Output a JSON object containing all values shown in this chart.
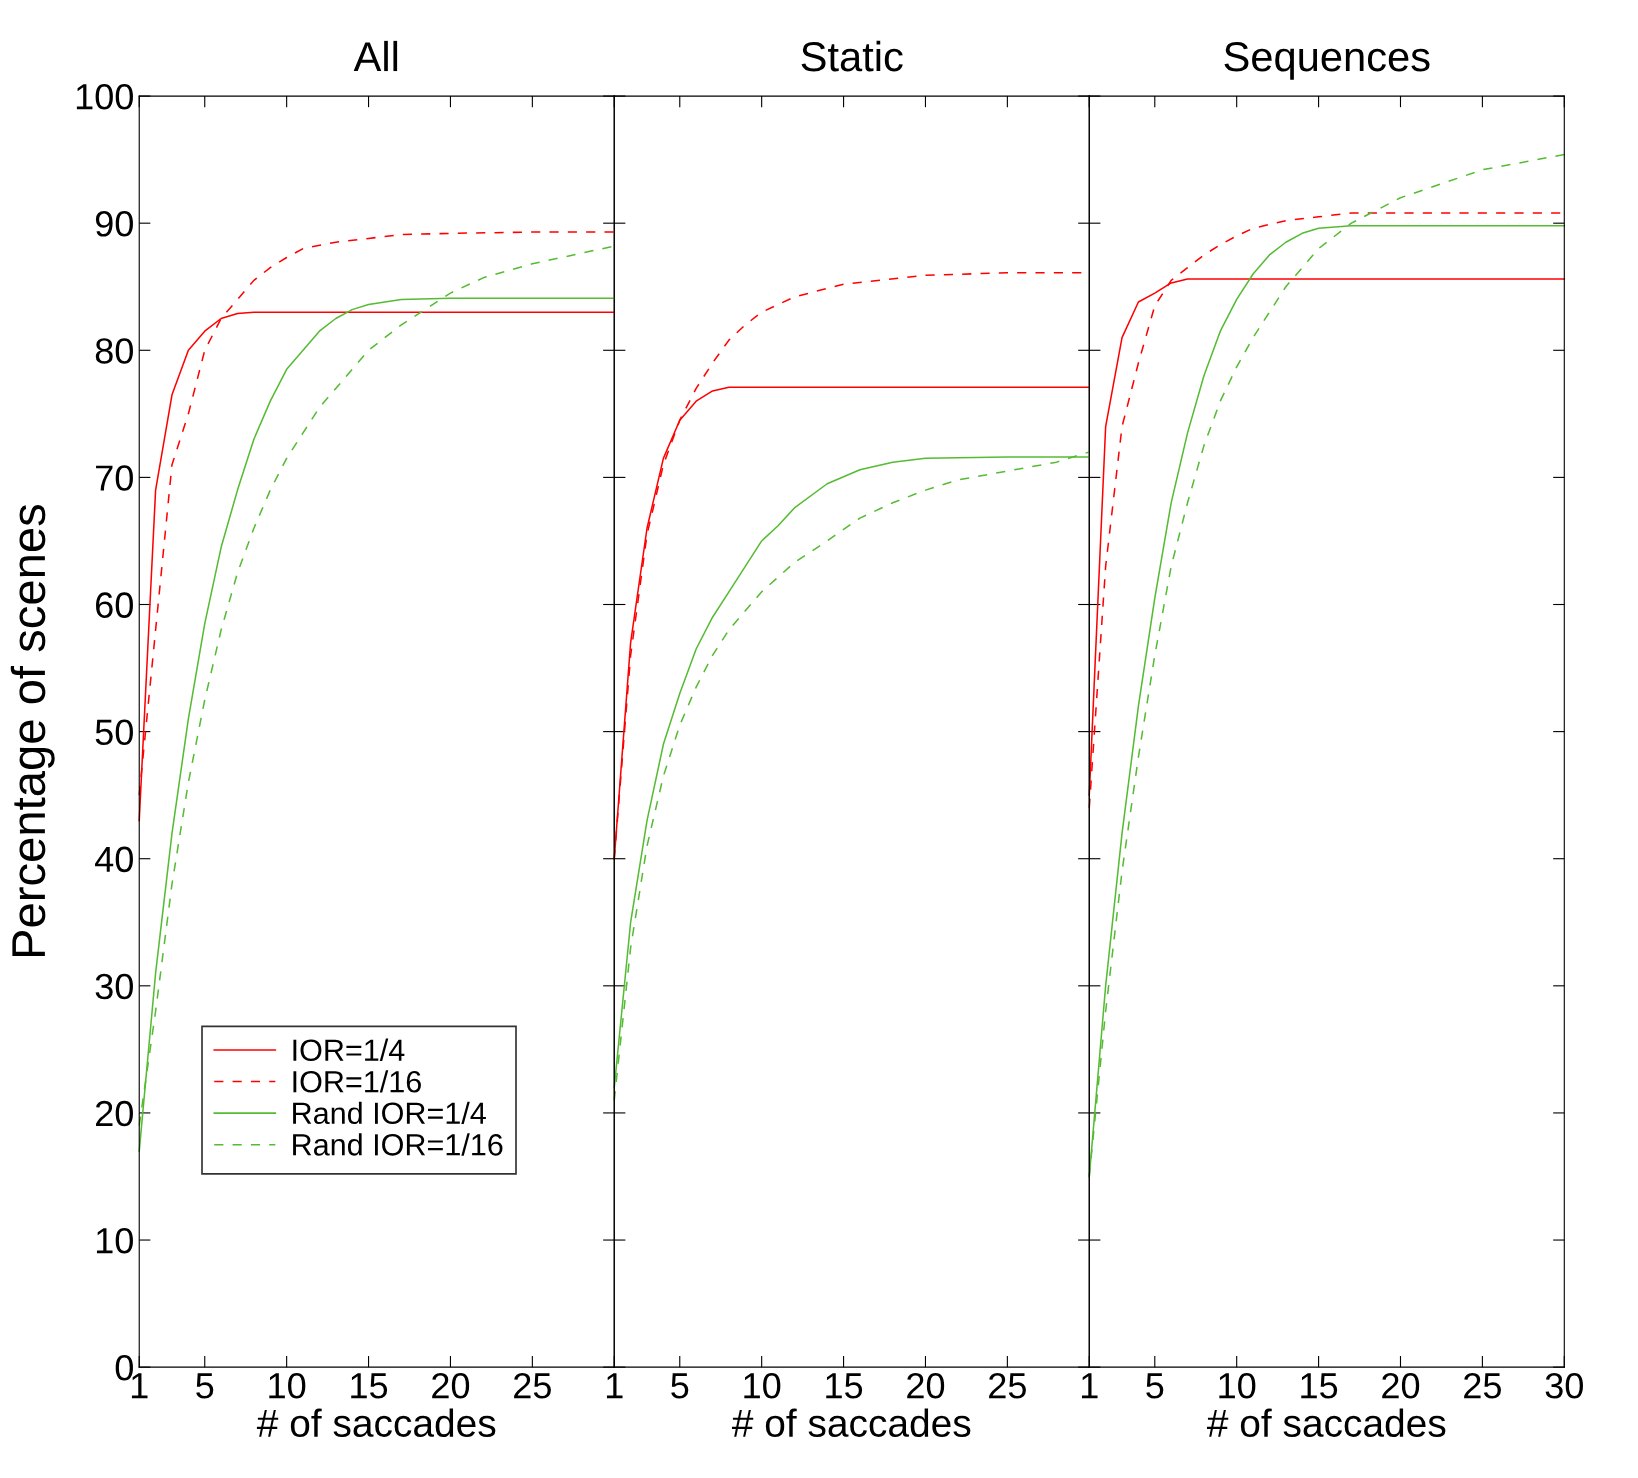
{
  "chart_data": [
    {
      "type": "line",
      "title": "All",
      "xlabel": "# of saccades",
      "ylabel": "Percentage of scenes",
      "xlim": [
        1,
        30
      ],
      "xticks": [
        1,
        5,
        10,
        15,
        20,
        25
      ],
      "ylim": [
        0,
        100
      ],
      "yticks": [
        0,
        10,
        20,
        30,
        40,
        50,
        60,
        70,
        80,
        90,
        100
      ],
      "grid": false,
      "legend": "lower left",
      "marker": "none",
      "series": [
        {
          "name": "IOR=1/4",
          "color": "#ff0000",
          "line_style": "solid",
          "x": [
            1,
            2,
            3,
            4,
            5,
            6,
            7,
            8,
            10,
            30
          ],
          "values": [
            43,
            69,
            76.5,
            80,
            81.5,
            82.5,
            82.9,
            83,
            83,
            83
          ]
        },
        {
          "name": "IOR=1/16",
          "color": "#ff0000",
          "line_style": "dashed",
          "x": [
            1,
            2,
            3,
            4,
            5,
            6,
            7,
            8,
            9,
            10,
            11,
            13,
            15,
            17,
            20,
            25,
            30
          ],
          "values": [
            45,
            58,
            71,
            75,
            80,
            82.5,
            84,
            85.5,
            86.5,
            87.3,
            88,
            88.5,
            88.8,
            89.1,
            89.2,
            89.3,
            89.3
          ]
        },
        {
          "name": "Rand IOR=1/4",
          "color": "#55bb33",
          "line_style": "solid",
          "x": [
            1,
            2,
            3,
            4,
            5,
            6,
            7,
            8,
            9,
            10,
            11,
            12,
            13,
            14,
            15,
            17,
            20,
            30
          ],
          "values": [
            17,
            31,
            42,
            51,
            58.5,
            64.5,
            69,
            73,
            76,
            78.5,
            80,
            81.5,
            82.5,
            83.2,
            83.6,
            84,
            84.1,
            84.1
          ]
        },
        {
          "name": "Rand IOR=1/16",
          "color": "#55bb33",
          "line_style": "dashed",
          "x": [
            1,
            2,
            3,
            4,
            5,
            6,
            7,
            8,
            9,
            10,
            11,
            12,
            13,
            14,
            15,
            17,
            20,
            22,
            25,
            30
          ],
          "values": [
            19,
            28,
            38,
            46,
            52.5,
            58,
            62.5,
            66,
            69,
            71.5,
            73.5,
            75.5,
            77,
            78.5,
            80,
            82,
            84.5,
            85.7,
            86.8,
            88.2
          ]
        }
      ]
    },
    {
      "type": "line",
      "title": "Static",
      "xlabel": "# of saccades",
      "xlim": [
        1,
        30
      ],
      "xticks": [
        1,
        5,
        10,
        15,
        20,
        25
      ],
      "ylim": [
        0,
        100
      ],
      "yticks": [
        0,
        10,
        20,
        30,
        40,
        50,
        60,
        70,
        80,
        90,
        100
      ],
      "tick_labels": "x",
      "grid": false,
      "marker": "none",
      "series": [
        {
          "color": "#ff0000",
          "line_style": "solid",
          "x": [
            1,
            2,
            3,
            4,
            5,
            6,
            7,
            8,
            10,
            30
          ],
          "values": [
            40,
            57,
            66,
            71.5,
            74.5,
            76,
            76.8,
            77.1,
            77.1,
            77.1
          ]
        },
        {
          "color": "#ff0000",
          "line_style": "dashed",
          "x": [
            1,
            2,
            3,
            4,
            5,
            6,
            7,
            8,
            9,
            10,
            12,
            15,
            20,
            25,
            30
          ],
          "values": [
            40,
            56,
            65.5,
            71,
            74.5,
            77,
            79,
            80.8,
            82,
            83,
            84.2,
            85.2,
            85.9,
            86.1,
            86.1
          ]
        },
        {
          "color": "#55bb33",
          "line_style": "solid",
          "x": [
            1,
            2,
            3,
            4,
            5,
            6,
            7,
            8,
            9,
            10,
            11,
            12,
            14,
            16,
            18,
            20,
            25,
            30
          ],
          "values": [
            22,
            35,
            43,
            49,
            53,
            56.5,
            59,
            61,
            63,
            65,
            66.2,
            67.6,
            69.5,
            70.6,
            71.2,
            71.5,
            71.6,
            71.6
          ]
        },
        {
          "color": "#55bb33",
          "line_style": "dashed",
          "x": [
            1,
            2,
            3,
            4,
            5,
            6,
            7,
            8,
            9,
            10,
            12,
            14,
            16,
            18,
            20,
            22,
            25,
            28,
            30
          ],
          "values": [
            21,
            33,
            41,
            46.5,
            50.5,
            53.5,
            56,
            58,
            59.5,
            61,
            63.3,
            65,
            66.8,
            68,
            69,
            69.8,
            70.5,
            71.2,
            72
          ]
        }
      ]
    },
    {
      "type": "line",
      "title": "Sequences",
      "xlabel": "# of saccades",
      "xlim": [
        1,
        30
      ],
      "xticks": [
        1,
        5,
        10,
        15,
        20,
        25,
        30
      ],
      "ylim": [
        0,
        100
      ],
      "yticks": [
        0,
        10,
        20,
        30,
        40,
        50,
        60,
        70,
        80,
        90,
        100
      ],
      "tick_labels": "x",
      "grid": false,
      "marker": "none",
      "series": [
        {
          "color": "#ff0000",
          "line_style": "solid",
          "x": [
            1,
            2,
            3,
            4,
            5,
            6,
            7,
            30
          ],
          "values": [
            45,
            74,
            81,
            83.8,
            84.5,
            85.3,
            85.6,
            85.6
          ]
        },
        {
          "color": "#ff0000",
          "line_style": "dashed",
          "x": [
            1,
            2,
            3,
            4,
            5,
            6,
            7,
            8,
            9,
            10,
            11,
            13,
            15,
            17,
            20,
            30
          ],
          "values": [
            44,
            63,
            74,
            79,
            83.5,
            85.5,
            86.5,
            87.5,
            88.3,
            89,
            89.6,
            90.2,
            90.5,
            90.8,
            90.8,
            90.8
          ]
        },
        {
          "color": "#55bb33",
          "line_style": "solid",
          "x": [
            1,
            2,
            3,
            4,
            5,
            6,
            7,
            8,
            9,
            10,
            11,
            12,
            13,
            14,
            15,
            17,
            30
          ],
          "values": [
            15,
            30,
            42,
            52,
            60.5,
            68,
            73.5,
            78,
            81.5,
            84,
            86,
            87.5,
            88.5,
            89.2,
            89.6,
            89.8,
            89.8
          ]
        },
        {
          "color": "#55bb33",
          "line_style": "dashed",
          "x": [
            1,
            2,
            3,
            4,
            5,
            6,
            7,
            8,
            9,
            10,
            11,
            12,
            13,
            14,
            15,
            17,
            20,
            25,
            30
          ],
          "values": [
            15,
            28,
            39,
            48,
            56,
            63,
            68,
            72.5,
            76,
            78.7,
            81,
            83,
            85,
            86.5,
            88,
            90,
            92,
            94.2,
            95.4
          ]
        }
      ]
    }
  ]
}
